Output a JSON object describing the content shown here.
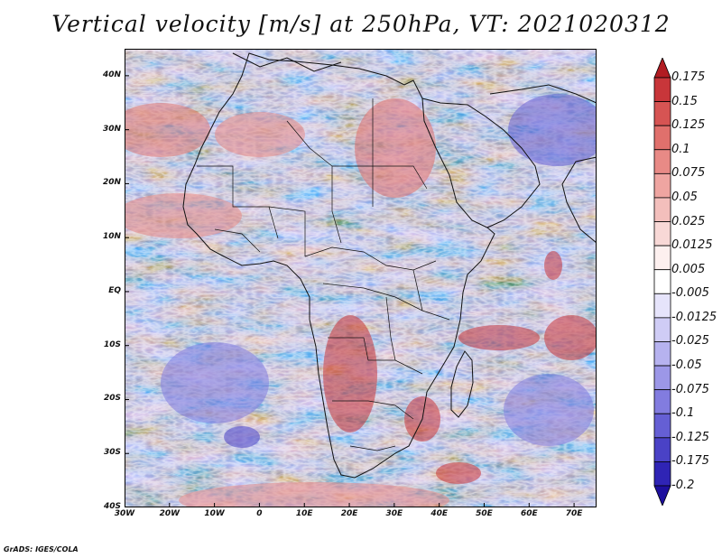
{
  "title": "Vertical velocity [m/s] at 250hPa, VT: 2021020312",
  "credit": "GrADS: IGES/COLA",
  "map": {
    "region": "Africa",
    "lon_range": [
      -30,
      75
    ],
    "lat_range": [
      -40,
      45
    ],
    "lat_labels": [
      "40N",
      "30N",
      "20N",
      "10N",
      "EQ",
      "10S",
      "20S",
      "30S",
      "40S"
    ],
    "lat_values": [
      40,
      30,
      20,
      10,
      0,
      -10,
      -20,
      -30,
      -40
    ],
    "lon_labels": [
      "30W",
      "20W",
      "10W",
      "0",
      "10E",
      "20E",
      "30E",
      "40E",
      "50E",
      "60E",
      "70E"
    ],
    "lon_values": [
      -30,
      -20,
      -10,
      0,
      10,
      20,
      30,
      40,
      50,
      60,
      70
    ]
  },
  "colorbar": {
    "labels": [
      "0.175",
      "0.15",
      "0.125",
      "0.1",
      "0.075",
      "0.05",
      "0.025",
      "0.0125",
      "0.005",
      "-0.005",
      "-0.0125",
      "-0.025",
      "-0.05",
      "-0.075",
      "-0.1",
      "-0.125",
      "-0.175",
      "-0.2"
    ],
    "colors": [
      "#b11c22",
      "#c8363a",
      "#d65453",
      "#e0706c",
      "#e88a86",
      "#efa5a1",
      "#f3bfbc",
      "#f8d8d6",
      "#fdf0ef",
      "#ffffff",
      "#e6e4fb",
      "#cfccf5",
      "#b6b2ef",
      "#9c97e7",
      "#827cdf",
      "#655fd4",
      "#4a42c6",
      "#2f24b5",
      "#1d0f9e"
    ]
  }
}
